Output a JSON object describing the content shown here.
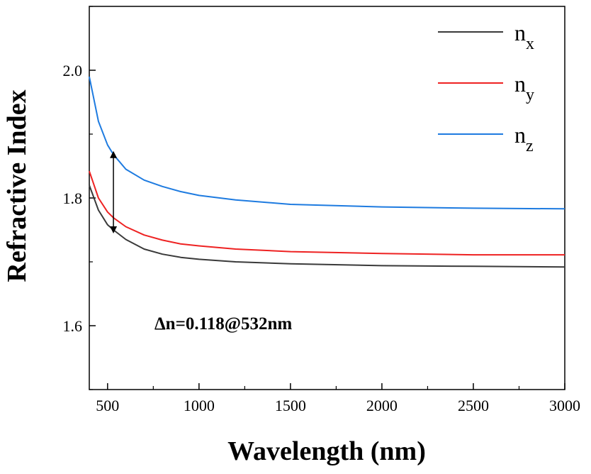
{
  "chart_data": {
    "type": "line",
    "xlabel": "Wavelength (nm)",
    "ylabel": "Refractive Index",
    "xlim": [
      400,
      3000
    ],
    "ylim": [
      1.5,
      2.1
    ],
    "xticks": [
      500,
      1000,
      1500,
      2000,
      2500,
      3000
    ],
    "yticks": [
      1.6,
      1.8,
      2.0
    ],
    "xtick_labels": [
      "500",
      "1000",
      "1500",
      "2000",
      "2500",
      "3000"
    ],
    "ytick_labels": [
      "1.6",
      "1.8",
      "2.0"
    ],
    "grid": false,
    "legend_position": "top-right",
    "series": [
      {
        "name": "n_x",
        "label_main": "n",
        "label_sub": "x",
        "color": "#3a3a3a",
        "x": [
          400,
          450,
          500,
          532,
          600,
          700,
          800,
          900,
          1000,
          1200,
          1500,
          2000,
          2500,
          3000
        ],
        "y": [
          1.82,
          1.781,
          1.758,
          1.75,
          1.735,
          1.72,
          1.712,
          1.707,
          1.704,
          1.7,
          1.697,
          1.694,
          1.693,
          1.692
        ]
      },
      {
        "name": "n_y",
        "label_main": "n",
        "label_sub": "y",
        "color": "#ee2222",
        "x": [
          400,
          450,
          500,
          532,
          600,
          700,
          800,
          900,
          1000,
          1200,
          1500,
          2000,
          2500,
          3000
        ],
        "y": [
          1.842,
          1.8,
          1.778,
          1.769,
          1.755,
          1.742,
          1.734,
          1.728,
          1.725,
          1.72,
          1.716,
          1.713,
          1.711,
          1.711
        ]
      },
      {
        "name": "n_z",
        "label_main": "n",
        "label_sub": "z",
        "color": "#1e7be0",
        "x": [
          400,
          450,
          500,
          532,
          600,
          700,
          800,
          900,
          1000,
          1200,
          1500,
          2000,
          2500,
          3000
        ],
        "y": [
          1.99,
          1.92,
          1.883,
          1.868,
          1.845,
          1.828,
          1.818,
          1.81,
          1.804,
          1.797,
          1.79,
          1.786,
          1.784,
          1.783
        ]
      }
    ],
    "annotations": [
      {
        "text": "Δn=0.118@532nm",
        "arrow_x": 532,
        "arrow_from": 1.75,
        "arrow_to": 1.868
      }
    ]
  }
}
